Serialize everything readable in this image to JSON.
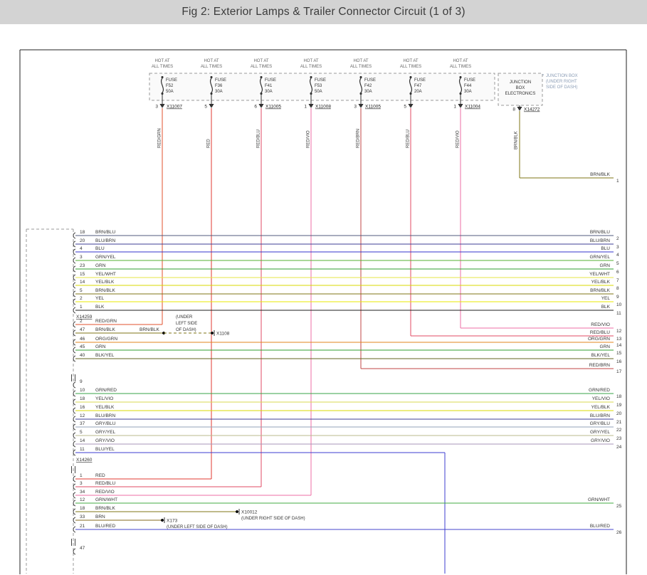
{
  "title": "Fig 2: Exterior Lamps & Trailer Connector Circuit (1 of 3)",
  "hot_label_lines": [
    "HOT AT",
    "ALL TIMES"
  ],
  "junction_note_lines": [
    "JUNCTION BOX",
    "(UNDER RIGHT",
    "SIDE OF DASH)"
  ],
  "fuses": [
    {
      "kind": "FUSE",
      "id": "F52",
      "amps": "50A",
      "pin": "3",
      "connector": "X11007",
      "wire": "RED/GRN"
    },
    {
      "kind": "FUSE",
      "id": "F36",
      "amps": "30A",
      "pin": "5",
      "connector": "",
      "wire": "RED"
    },
    {
      "kind": "FUSE",
      "id": "F41",
      "amps": "30A",
      "pin": "6",
      "connector": "X11005",
      "wire": "RED/BLU"
    },
    {
      "kind": "FUSE",
      "id": "F53",
      "amps": "50A",
      "pin": "1",
      "connector": "X11008",
      "wire": "RED/VIO"
    },
    {
      "kind": "FUSE",
      "id": "F42",
      "amps": "30A",
      "pin": "3",
      "connector": "X11005",
      "wire": "RED/BRN",
      "right_pin": "17"
    },
    {
      "kind": "FUSE",
      "id": "F47",
      "amps": "20A",
      "pin": "5",
      "connector": "",
      "wire": "RED/BLU",
      "right_pin": "13"
    },
    {
      "kind": "FUSE",
      "id": "F44",
      "amps": "30A",
      "pin": "1",
      "connector": "X11004",
      "wire": "RED/VIO",
      "right_pin": "12"
    }
  ],
  "junction_box_electronics": {
    "name_lines": [
      "JUNCTION",
      "BOX",
      "ELECTRONICS"
    ],
    "pin": "8",
    "connector": "X14272",
    "wire": "BRN/BLK",
    "right_pin": "1"
  },
  "left_connector": {
    "groups": [
      {
        "connector_label": "X14259",
        "wires": [
          {
            "pin": "18",
            "wire": "BRN/BLU",
            "right_pin": "2"
          },
          {
            "pin": "20",
            "wire": "BLU/BRN",
            "right_pin": "3"
          },
          {
            "pin": "4",
            "wire": "BLU",
            "right_pin": "4"
          },
          {
            "pin": "3",
            "wire": "GRN/YEL",
            "right_pin": "5"
          },
          {
            "pin": "23",
            "wire": "GRN",
            "right_pin": "6"
          },
          {
            "pin": "15",
            "wire": "YEL/WHT",
            "right_pin": "7"
          },
          {
            "pin": "14",
            "wire": "YEL/BLK",
            "right_pin": "8"
          },
          {
            "pin": "5",
            "wire": "BRN/BLK",
            "right_pin": "9"
          },
          {
            "pin": "2",
            "wire": "YEL",
            "right_pin": "10"
          },
          {
            "pin": "1",
            "wire": "BLK",
            "right_pin": "11"
          }
        ]
      },
      {
        "connector_label": "",
        "wires": [
          {
            "pin": "2",
            "wire": "RED/GRN",
            "to_fuse": "F52"
          },
          {
            "pin": "47",
            "wire": "BRN/BLK",
            "splice": {
              "wire2": "BRN/BLK",
              "connector": "X1108",
              "note_lines": [
                "(UNDER",
                "LEFT SIDE",
                "OF DASH)"
              ]
            }
          },
          {
            "pin": "46",
            "wire": "ORG/GRN",
            "right_pin": "14"
          },
          {
            "pin": "45",
            "wire": "GRN",
            "right_pin": "15"
          },
          {
            "pin": "40",
            "wire": "BLK/YEL",
            "right_pin": "16"
          }
        ]
      },
      {
        "connector_label": "X14260",
        "wires": [
          {
            "pin": "9",
            "wire": ""
          },
          {
            "pin": "10",
            "wire": "GRN/RED",
            "right_pin": "18"
          },
          {
            "pin": "18",
            "wire": "YEL/VIO",
            "right_pin": "19"
          },
          {
            "pin": "16",
            "wire": "YEL/BLK",
            "right_pin": "20"
          },
          {
            "pin": "12",
            "wire": "BLU/BRN",
            "right_pin": "21"
          },
          {
            "pin": "37",
            "wire": "GRY/BLU",
            "right_pin": "22"
          },
          {
            "pin": "5",
            "wire": "GRY/YEL",
            "right_pin": "23"
          },
          {
            "pin": "14",
            "wire": "GRY/VIO",
            "right_pin": "24"
          },
          {
            "pin": "11",
            "wire": "BLU/YEL",
            "route": "down"
          }
        ]
      },
      {
        "connector_label": "",
        "wires": [
          {
            "pin": "1",
            "wire": "RED",
            "to_fuse": "F36"
          },
          {
            "pin": "3",
            "wire": "RED/BLU",
            "to_fuse": "F41"
          },
          {
            "pin": "34",
            "wire": "RED/VIO",
            "to_fuse": "F53"
          },
          {
            "pin": "12",
            "wire": "GRN/WHT",
            "right_pin": "25"
          },
          {
            "pin": "18",
            "wire": "BRN/BLK",
            "end_connector": {
              "connector": "X10012",
              "note": "(UNDER RIGHT SIDE OF DASH)"
            }
          },
          {
            "pin": "33",
            "wire": "BRN",
            "end_connector": {
              "connector": "X173",
              "note": "(UNDER LEFT SIDE OF DASH)"
            }
          },
          {
            "pin": "21",
            "wire": "BLU/RED",
            "right_pin": "26"
          }
        ]
      },
      {
        "connector_label": "",
        "wires": [
          {
            "pin": "47",
            "wire": ""
          }
        ]
      }
    ]
  },
  "wire_colors": {
    "RED": "#e03a30",
    "RED/GRN": "#e0502e",
    "RED/BLU": "#e04a63",
    "RED/VIO": "#ee6da6",
    "RED/BRN": "#c24444",
    "BRN/BLK": "#7f7514",
    "BRN": "#83691c",
    "BRN/BLU": "#515a7d",
    "BLU/BRN": "#3d3d96",
    "BLU": "#3333cc",
    "BLU/YEL": "#3d3dd0",
    "BLU/RED": "#4444cc",
    "GRN/YEL": "#55b033",
    "GRN": "#2f9e2f",
    "GRN/RED": "#37a347",
    "GRN/WHT": "#43ab43",
    "YEL/WHT": "#e6e645",
    "YEL/BLK": "#d8d800",
    "YEL": "#e8e800",
    "YEL/VIO": "#dada50",
    "BLK": "#1c1c1c",
    "BLK/YEL": "#63631c",
    "ORG/GRN": "#e0861c",
    "GRY/BLU": "#93a3b8",
    "GRY/YEL": "#b9b98d",
    "GRY/VIO": "#a795b8"
  }
}
